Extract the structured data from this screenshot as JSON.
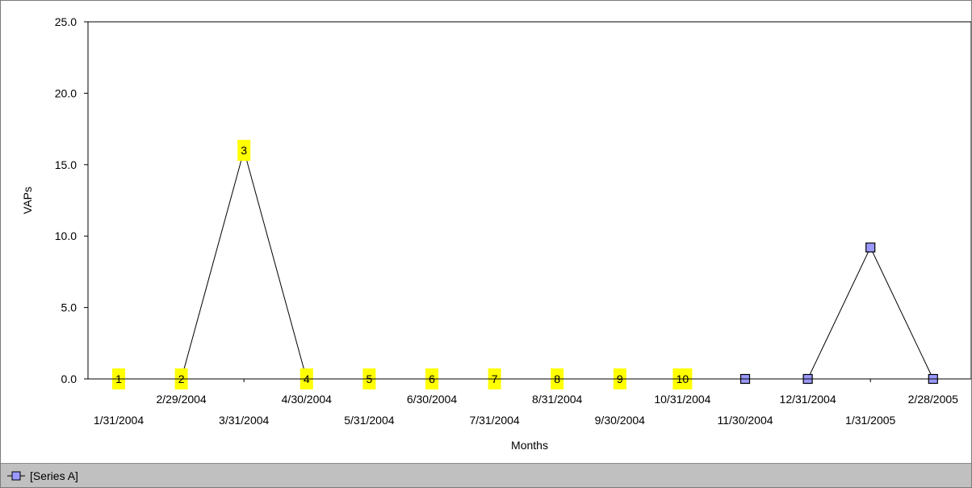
{
  "chart_data": {
    "type": "line",
    "ylabel": "VAPs",
    "xlabel": "Months",
    "ylim": [
      0,
      25
    ],
    "yticks": [
      "0.0",
      "5.0",
      "10.0",
      "15.0",
      "20.0",
      "25.0"
    ],
    "grid": false,
    "legend_placement": "bottom",
    "categories": [
      "1/31/2004",
      "2/29/2004",
      "3/31/2004",
      "4/30/2004",
      "5/31/2004",
      "6/30/2004",
      "7/31/2004",
      "8/31/2004",
      "9/30/2004",
      "10/31/2004",
      "11/30/2004",
      "12/31/2004",
      "1/31/2005",
      "2/28/2005"
    ],
    "series": [
      {
        "name": "[Series A]",
        "values": [
          0,
          0,
          16,
          0,
          0,
          0,
          0,
          0,
          0,
          0,
          0,
          0,
          9.2,
          0
        ],
        "color": "#000000",
        "marker_fill": "#9999ff"
      }
    ],
    "annotations": [
      {
        "index": 0,
        "label": "1"
      },
      {
        "index": 1,
        "label": "2"
      },
      {
        "index": 2,
        "label": "3"
      },
      {
        "index": 3,
        "label": "4"
      },
      {
        "index": 4,
        "label": "5"
      },
      {
        "index": 5,
        "label": "6"
      },
      {
        "index": 6,
        "label": "7"
      },
      {
        "index": 7,
        "label": "8"
      },
      {
        "index": 8,
        "label": "9"
      },
      {
        "index": 9,
        "label": "10"
      }
    ],
    "annotation_color": "#ffff00"
  },
  "legend": {
    "label": "[Series A]",
    "icon": "square-marker-line-icon"
  }
}
